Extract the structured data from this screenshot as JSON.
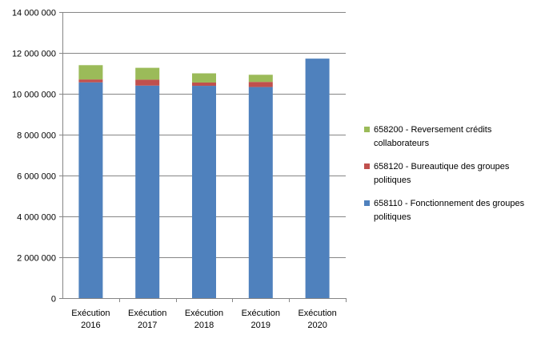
{
  "chart_data": {
    "type": "bar",
    "stacked": true,
    "categories": [
      [
        "Exécution",
        "2016"
      ],
      [
        "Exécution",
        "2017"
      ],
      [
        "Exécution",
        "2018"
      ],
      [
        "Exécution",
        "2019"
      ],
      [
        "Exécution",
        "2020"
      ]
    ],
    "series": [
      {
        "name": "658110 - Fonctionnement des groupes politiques",
        "color": "#4f81bd",
        "values": [
          10560000,
          10400000,
          10390000,
          10330000,
          11720000
        ]
      },
      {
        "name": "658120 - Bureautique des groupes politiques",
        "color": "#c0504d",
        "values": [
          140000,
          290000,
          160000,
          250000,
          0
        ]
      },
      {
        "name": "658200 - Reversement crédits collaborateurs",
        "color": "#9bbb59",
        "values": [
          700000,
          580000,
          450000,
          350000,
          0
        ]
      }
    ],
    "ylim": [
      0,
      14000000
    ],
    "y_ticks": [
      0,
      2000000,
      4000000,
      6000000,
      8000000,
      10000000,
      12000000,
      14000000
    ],
    "y_tick_labels": [
      "0",
      "2 000 000",
      "4 000 000",
      "6 000 000",
      "8 000 000",
      "10 000 000",
      "12 000 000",
      "14 000 000"
    ],
    "grid": true,
    "legend_position": "right",
    "legend_order": [
      "658200 - Reversement crédits collaborateurs",
      "658120 - Bureautique des groupes politiques",
      "658110 - Fonctionnement des groupes politiques"
    ]
  }
}
